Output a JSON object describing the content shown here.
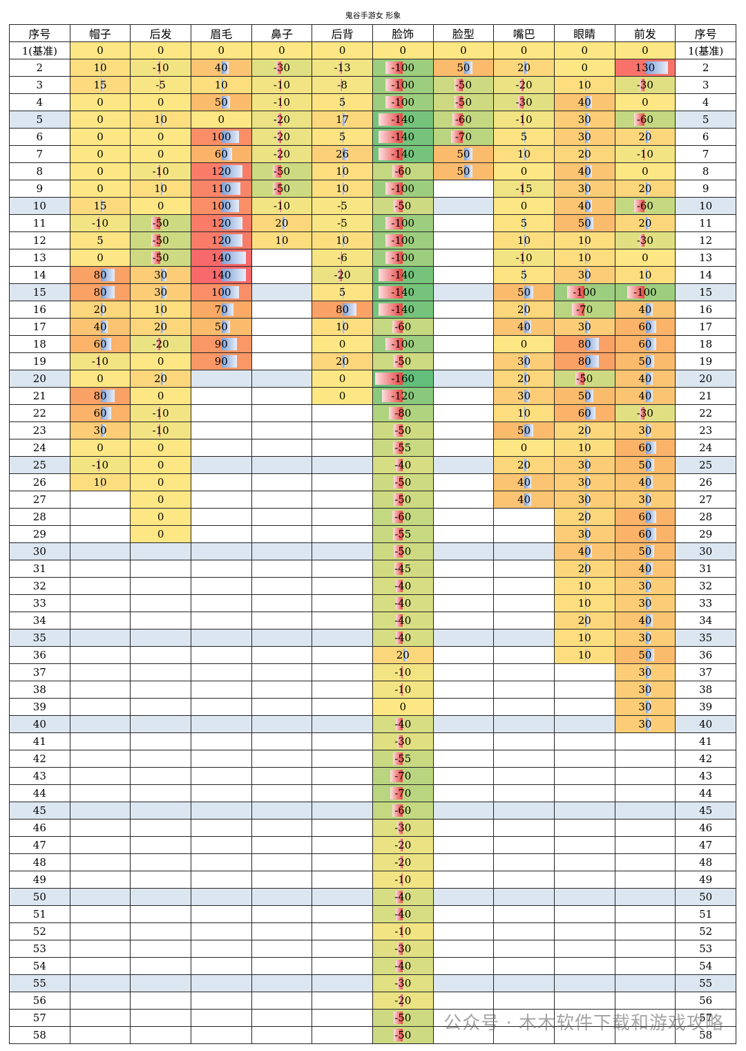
{
  "title": "鬼谷手游女 形象",
  "watermark": "公众号 · 木木软件下载和游戏攻略",
  "table": {
    "index_header": "序号",
    "row_labels": [
      "1(基准)",
      "2",
      "3",
      "4",
      "5",
      "6",
      "7",
      "8",
      "9",
      "10",
      "11",
      "12",
      "13",
      "14",
      "15",
      "16",
      "17",
      "18",
      "19",
      "20",
      "21",
      "22",
      "23",
      "24",
      "25",
      "26",
      "27",
      "28",
      "29",
      "30",
      "31",
      "32",
      "33",
      "34",
      "35",
      "36",
      "37",
      "38",
      "39",
      "40",
      "41",
      "42",
      "43",
      "44",
      "45",
      "46",
      "47",
      "48",
      "49",
      "50",
      "51",
      "52",
      "53",
      "54",
      "55",
      "56",
      "57",
      "58"
    ],
    "columns": [
      {
        "header": "帽子",
        "values": [
          0,
          10,
          15,
          0,
          0,
          0,
          0,
          0,
          0,
          15,
          -10,
          5,
          0,
          80,
          80,
          20,
          40,
          60,
          -10,
          0,
          80,
          60,
          30,
          0,
          -10,
          10
        ]
      },
      {
        "header": "后发",
        "values": [
          0,
          -10,
          -5,
          0,
          10,
          0,
          0,
          -10,
          10,
          0,
          -50,
          -50,
          -50,
          30,
          30,
          10,
          20,
          -20,
          0,
          20,
          0,
          -10,
          -10,
          0,
          0,
          0,
          0,
          0,
          0
        ]
      },
      {
        "header": "眉毛",
        "values": [
          0,
          40,
          10,
          50,
          0,
          100,
          60,
          120,
          110,
          100,
          120,
          120,
          140,
          140,
          100,
          70,
          50,
          90,
          90
        ]
      },
      {
        "header": "鼻子",
        "values": [
          0,
          -30,
          -10,
          -10,
          -20,
          -20,
          -20,
          -50,
          -50,
          -10,
          20,
          10
        ]
      },
      {
        "header": "后背",
        "values": [
          0,
          -13,
          -8,
          5,
          17,
          5,
          26,
          10,
          10,
          -5,
          -5,
          10,
          -6,
          -20,
          5,
          80,
          10,
          0,
          20,
          0,
          0
        ]
      },
      {
        "header": "脸饰",
        "values": [
          0,
          -100,
          -100,
          -100,
          -140,
          -140,
          -140,
          -60,
          -100,
          -50,
          -100,
          -100,
          -100,
          -140,
          -140,
          -140,
          -60,
          -100,
          -50,
          -160,
          -120,
          -80,
          -50,
          -55,
          -40,
          -50,
          -50,
          -60,
          -55,
          -50,
          -45,
          -40,
          -40,
          -40,
          -40,
          20,
          -10,
          -10,
          0,
          -40,
          -30,
          -55,
          -70,
          -70,
          -60,
          -30,
          -20,
          -20,
          -10,
          -40,
          -40,
          -10,
          -30,
          -40,
          -30,
          -20,
          -50,
          -50
        ]
      },
      {
        "header": "脸型",
        "values": [
          0,
          50,
          -50,
          -50,
          -60,
          -70,
          50,
          50
        ]
      },
      {
        "header": "嘴巴",
        "values": [
          0,
          20,
          -20,
          -30,
          -10,
          5,
          10,
          0,
          -15,
          0,
          5,
          10,
          -10,
          5,
          50,
          20,
          40,
          0,
          30,
          20,
          30,
          10,
          50,
          0,
          20,
          40,
          40
        ]
      },
      {
        "header": "眼睛",
        "values": [
          0,
          0,
          10,
          40,
          30,
          30,
          20,
          40,
          30,
          40,
          50,
          10,
          10,
          30,
          -100,
          -70,
          30,
          80,
          80,
          -50,
          50,
          60,
          20,
          10,
          30,
          30,
          30,
          20,
          30,
          40,
          20,
          10,
          10,
          20,
          10,
          10
        ]
      },
      {
        "header": "前发",
        "values": [
          0,
          130,
          -30,
          0,
          -60,
          20,
          -10,
          0,
          20,
          -60,
          20,
          -30,
          0,
          10,
          -100,
          40,
          60,
          60,
          50,
          40,
          40,
          -30,
          30,
          60,
          50,
          40,
          30,
          60,
          60,
          50,
          40,
          30,
          30,
          40,
          30,
          50,
          30,
          30,
          30,
          30
        ]
      }
    ]
  }
}
